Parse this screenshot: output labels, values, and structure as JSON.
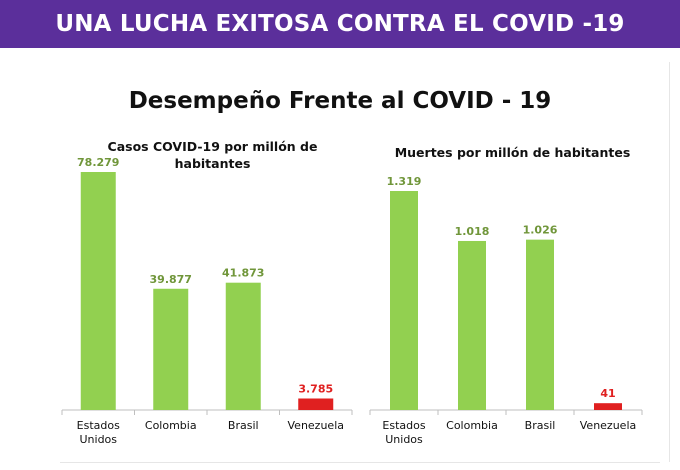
{
  "header": {
    "title": "UNA LUCHA EXITOSA CONTRA EL COVID -19"
  },
  "slide": {
    "title": "Desempeño Frente al COVID - 19"
  },
  "colors": {
    "banner": "#5b2f9b",
    "bar_green": "#92d050",
    "bar_red": "#e02020",
    "label_green": "#70963a",
    "label_red": "#e02020"
  },
  "chart_data": [
    {
      "type": "bar",
      "title": "Casos COVID-19 por millón de habitantes",
      "categories": [
        "Estados Unidos",
        "Colombia",
        "Brasil",
        "Venezuela"
      ],
      "values": [
        78279,
        39877,
        41873,
        3785
      ],
      "data_labels": [
        "78.279",
        "39.877",
        "41.873",
        "3.785"
      ],
      "bar_colors": [
        "#92d050",
        "#92d050",
        "#92d050",
        "#e02020"
      ],
      "ylim": [
        0,
        78279
      ]
    },
    {
      "type": "bar",
      "title": "Muertes por millón de habitantes",
      "categories": [
        "Estados Unidos",
        "Colombia",
        "Brasil",
        "Venezuela"
      ],
      "values": [
        1319,
        1018,
        1026,
        41
      ],
      "data_labels": [
        "1.319",
        "1.018",
        "1.026",
        "41"
      ],
      "bar_colors": [
        "#92d050",
        "#92d050",
        "#92d050",
        "#e02020"
      ],
      "ylim": [
        0,
        1319
      ]
    }
  ]
}
